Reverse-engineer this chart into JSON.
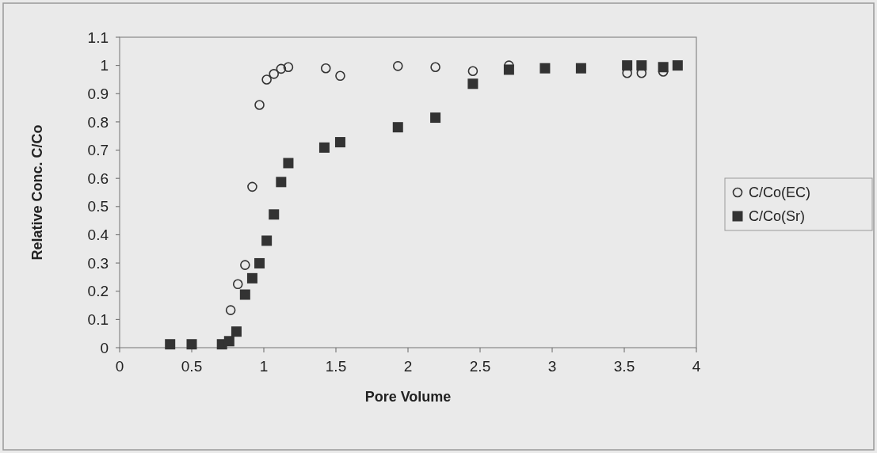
{
  "chart_data": {
    "type": "scatter",
    "xlabel": "Pore Volume",
    "ylabel": "Relative Conc. C/Co",
    "xlim": [
      0,
      4
    ],
    "ylim": [
      0,
      1.1
    ],
    "xticks": [
      0,
      0.5,
      1,
      1.5,
      2,
      2.5,
      3,
      3.5,
      4
    ],
    "yticks": [
      0,
      0.1,
      0.2,
      0.3,
      0.4,
      0.5,
      0.6,
      0.7,
      0.8,
      0.9,
      1,
      1.1
    ],
    "grid": false,
    "legend": "right",
    "series": [
      {
        "name": "C/Co(EC)",
        "color": "#333333",
        "marker": "circle",
        "x": [
          0.77,
          0.82,
          0.87,
          0.92,
          0.97,
          1.02,
          1.07,
          1.12,
          1.17,
          1.43,
          1.53,
          1.93,
          2.19,
          2.45,
          2.7,
          3.52,
          3.62,
          3.77
        ],
        "values": [
          0.133,
          0.225,
          0.293,
          0.57,
          0.86,
          0.95,
          0.97,
          0.988,
          0.994,
          0.99,
          0.963,
          0.998,
          0.994,
          0.98,
          1.0,
          0.973,
          0.973,
          0.978
        ]
      },
      {
        "name": "C/Co(Sr)",
        "color": "#333333",
        "marker": "square",
        "x": [
          0.35,
          0.5,
          0.71,
          0.76,
          0.81,
          0.87,
          0.92,
          0.97,
          1.02,
          1.07,
          1.12,
          1.17,
          1.42,
          1.53,
          1.93,
          2.19,
          2.45,
          2.7,
          2.95,
          3.2,
          3.52,
          3.62,
          3.77,
          3.87
        ],
        "values": [
          0.012,
          0.012,
          0.012,
          0.023,
          0.057,
          0.188,
          0.246,
          0.299,
          0.379,
          0.472,
          0.587,
          0.654,
          0.709,
          0.728,
          0.781,
          0.815,
          0.935,
          0.985,
          0.99,
          0.99,
          1.0,
          1.0,
          0.994,
          1.0
        ]
      }
    ]
  }
}
